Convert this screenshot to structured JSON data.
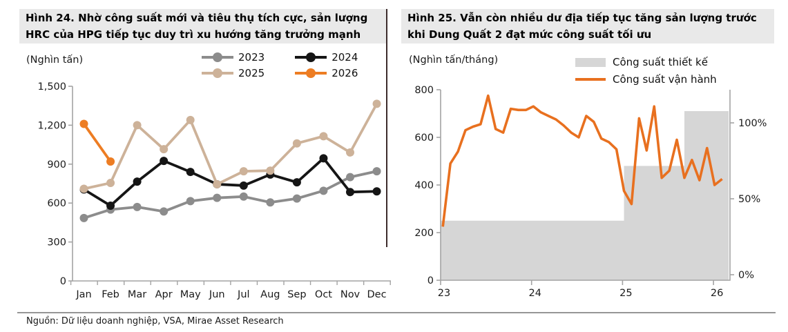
{
  "page": {
    "source_note": "Nguồn: Dữ liệu doanh nghiệp, VSA, Mirae Asset Research"
  },
  "left_panel": {
    "title_line1": "Hình 24. Nhờ công suất mới và tiêu thụ tích cực, sản lượng",
    "title_line2": "HRC của HPG tiếp tục duy trì xu hướng tăng trưởng mạnh",
    "unit_label": "(Nghìn tấn)"
  },
  "right_panel": {
    "title_line1": "Hình 25. Vẫn còn nhiều dư địa tiếp tục tăng sản lượng trước",
    "title_line2": "khi Dung Quất 2 đạt mức công suất tối ưu",
    "unit_label": "(Nghìn tấn/tháng)"
  },
  "colors": {
    "series_2023": "#8c8c8c",
    "series_2024": "#151515",
    "series_2025": "#cdb299",
    "series_2026": "#ed7d23",
    "capacity_area": "#d6d6d6",
    "operating_line": "#e8701f",
    "axis": "#a3a3a3",
    "title_band_bg": "#e9e9e9",
    "divider": "#3c2b2b"
  },
  "chart_data": [
    {
      "type": "line",
      "title": "Hình 24. Nhờ công suất mới và tiêu thụ tích cực, sản lượng HRC của HPG tiếp tục duy trì xu hướng tăng trưởng mạnh",
      "unit": "(Nghìn tấn)",
      "categories": [
        "Jan",
        "Feb",
        "Mar",
        "Apr",
        "May",
        "Jun",
        "Jul",
        "Aug",
        "Sep",
        "Oct",
        "Nov",
        "Dec"
      ],
      "ylim": [
        0,
        1500
      ],
      "yticks": [
        0,
        300,
        600,
        900,
        1200,
        1500
      ],
      "legend_position": "top",
      "grid": false,
      "series": [
        {
          "name": "2023",
          "color": "#8c8c8c",
          "values": [
            485,
            550,
            570,
            535,
            615,
            640,
            650,
            605,
            635,
            695,
            800,
            845
          ]
        },
        {
          "name": "2024",
          "color": "#151515",
          "values": [
            705,
            580,
            765,
            925,
            840,
            745,
            735,
            820,
            760,
            945,
            685,
            690
          ]
        },
        {
          "name": "2025",
          "color": "#cdb299",
          "values": [
            710,
            755,
            1200,
            1015,
            1240,
            745,
            845,
            850,
            1060,
            1115,
            990,
            1365
          ]
        },
        {
          "name": "2026",
          "color": "#ed7d23",
          "values": [
            1210,
            920,
            null,
            null,
            null,
            null,
            null,
            null,
            null,
            null,
            null,
            null
          ]
        }
      ]
    },
    {
      "type": "area+line",
      "title": "Hình 25. Vẫn còn nhiều dư địa tiếp tục tăng sản lượng trước khi Dung Quất 2 đạt mức công suất tối ưu",
      "unit": "(Nghìn tấn/tháng)",
      "x_start": "Jan-2023",
      "x_end": "Feb-2026",
      "x_tick_labels": [
        "23",
        "24",
        "25",
        "26"
      ],
      "x_tick_months": [
        0,
        12,
        24,
        36
      ],
      "ylim_left": [
        0,
        800
      ],
      "yticks_left": [
        0,
        200,
        400,
        600,
        800
      ],
      "yticks_right_percent": [
        0,
        50,
        100
      ],
      "ytick_right_labels": [
        "0%",
        "50%",
        "100%"
      ],
      "grid": false,
      "area_series": {
        "name": "Công suất thiết kế",
        "color": "#d6d6d6",
        "steps": [
          {
            "from_month": 0,
            "to_month": 24,
            "value": 250
          },
          {
            "from_month": 24,
            "to_month": 32,
            "value": 480
          },
          {
            "from_month": 32,
            "to_month": 38,
            "value": 710
          }
        ]
      },
      "line_series": {
        "name": "Công suất vận hành",
        "color": "#e8701f",
        "values": [
          225,
          490,
          540,
          630,
          645,
          655,
          775,
          635,
          620,
          720,
          715,
          715,
          730,
          705,
          690,
          675,
          650,
          620,
          600,
          690,
          665,
          595,
          580,
          550,
          375,
          320,
          680,
          545,
          730,
          430,
          460,
          590,
          430,
          505,
          420,
          555,
          400,
          425
        ]
      }
    }
  ]
}
